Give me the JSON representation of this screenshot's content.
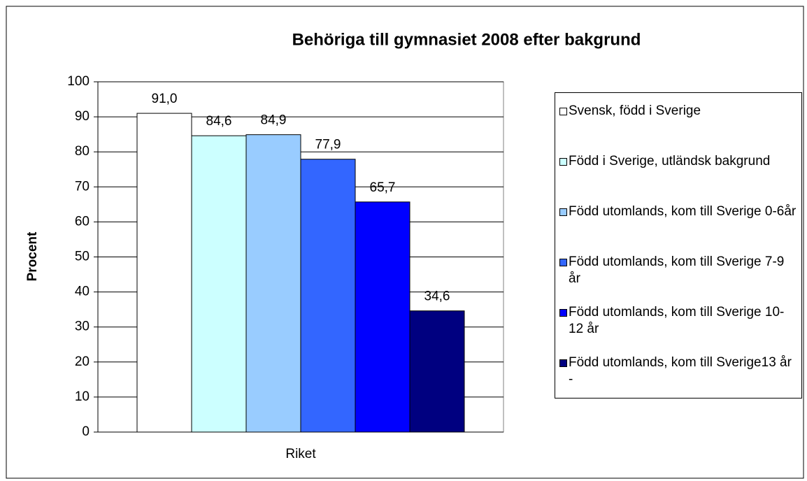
{
  "chart_data": {
    "type": "bar",
    "title": "Behöriga till gymnasiet 2008 efter bakgrund",
    "y_label": "Procent",
    "categories": [
      "Riket"
    ],
    "series": [
      {
        "name": "Svensk, född i Sverige",
        "color": "#ffffff",
        "values": [
          91.0
        ],
        "value_labels": [
          "91,0"
        ]
      },
      {
        "name": "Född i Sverige, utländsk bakgrund",
        "color": "#ccffff",
        "values": [
          84.6
        ],
        "value_labels": [
          "84,6"
        ]
      },
      {
        "name": "Född utomlands, kom till Sverige 0-6år",
        "color": "#99ccff",
        "values": [
          84.9
        ],
        "value_labels": [
          "84,9"
        ]
      },
      {
        "name": "Född utomlands, kom till Sverige 7-9 år",
        "color": "#3366ff",
        "values": [
          77.9
        ],
        "value_labels": [
          "77,9"
        ]
      },
      {
        "name": "Född utomlands, kom till Sverige 10-12 år",
        "color": "#0000ff",
        "values": [
          65.7
        ],
        "value_labels": [
          "65,7"
        ]
      },
      {
        "name": "Född utomlands, kom till Sverige13 år -",
        "color": "#000080",
        "values": [
          34.6
        ],
        "value_labels": [
          "34,6"
        ]
      }
    ],
    "ylim": [
      0,
      100
    ],
    "yticks": [
      0,
      10,
      20,
      30,
      40,
      50,
      60,
      70,
      80,
      90,
      100
    ],
    "grid": true,
    "legend": "right"
  }
}
